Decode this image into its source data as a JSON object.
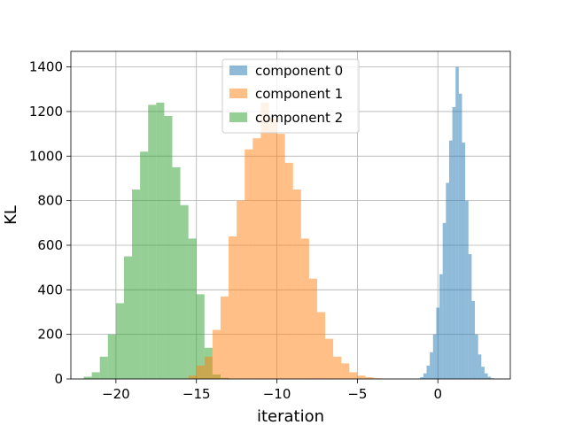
{
  "chart_data": {
    "type": "bar",
    "title": "",
    "xlabel": "iteration",
    "ylabel": "KL",
    "xlim": [
      -22.8,
      4.5
    ],
    "ylim": [
      0,
      1470
    ],
    "xticks": [
      -20,
      -15,
      -10,
      -5,
      0
    ],
    "xtick_labels": [
      "−20",
      "−15",
      "−10",
      "−5",
      "0"
    ],
    "yticks": [
      0,
      200,
      400,
      600,
      800,
      1000,
      1200,
      1400
    ],
    "ytick_labels": [
      "0",
      "200",
      "400",
      "600",
      "800",
      "1000",
      "1200",
      "1400"
    ],
    "grid": true,
    "legend_position": "upper center",
    "series": [
      {
        "name": "component 2",
        "color": "#2ca02c",
        "opacity": 0.5,
        "x_start": -22.0,
        "bin_width": 0.5,
        "values": [
          10,
          30,
          100,
          200,
          340,
          550,
          850,
          1020,
          1230,
          1240,
          1180,
          950,
          780,
          630,
          380,
          140,
          20,
          5
        ]
      },
      {
        "name": "component 1",
        "color": "#ff7f0e",
        "opacity": 0.5,
        "x_start": -15.5,
        "bin_width": 0.5,
        "values": [
          15,
          60,
          100,
          220,
          370,
          640,
          800,
          1030,
          1080,
          1240,
          1170,
          1100,
          970,
          850,
          630,
          450,
          300,
          180,
          100,
          70,
          30,
          15,
          8,
          3
        ]
      },
      {
        "name": "component 0",
        "color": "#1f77b4",
        "opacity": 0.5,
        "x_start": -1.3,
        "bin_width": 0.2,
        "values": [
          2,
          8,
          25,
          60,
          120,
          200,
          320,
          470,
          700,
          880,
          1070,
          1220,
          1400,
          1280,
          1060,
          800,
          560,
          350,
          200,
          110,
          55,
          25,
          10,
          3
        ]
      }
    ],
    "legend": [
      "component 0",
      "component 1",
      "component 2"
    ]
  }
}
